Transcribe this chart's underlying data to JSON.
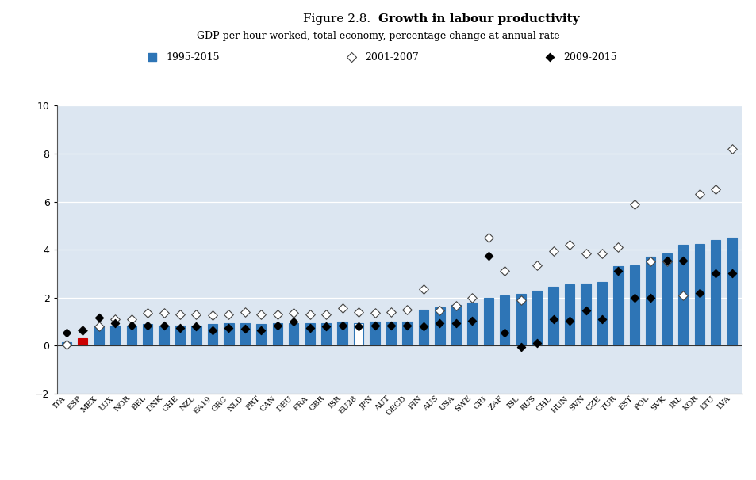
{
  "title_prefix": "Figure 2.8.  ",
  "title_bold": "Growth in labour productivity",
  "subtitle": "GDP per hour worked, total economy, percentage change at annual rate",
  "categories": [
    "ITA",
    "ESP",
    "MEX",
    "LUX",
    "NOR",
    "BEL",
    "DNK",
    "CHE",
    "NZL",
    "EA19",
    "GRC",
    "NLD",
    "PRT",
    "CAN",
    "DEU",
    "FRA",
    "GBR",
    "ISR",
    "EU28",
    "JPN",
    "AUT",
    "OECD",
    "FIN",
    "AUS",
    "USA",
    "SWE",
    "CRI",
    "ZAF",
    "ISL",
    "RUS",
    "CHL",
    "HUN",
    "SVN",
    "CZE",
    "TUR",
    "EST",
    "POL",
    "SVK",
    "IRL",
    "KOR",
    "LTU",
    "LVA"
  ],
  "bar_values": [
    0.15,
    0.3,
    0.85,
    0.85,
    0.85,
    0.9,
    0.85,
    0.85,
    0.85,
    0.9,
    0.95,
    0.95,
    0.9,
    0.95,
    0.95,
    0.95,
    0.95,
    1.0,
    0.95,
    1.0,
    1.0,
    1.0,
    1.5,
    1.6,
    1.7,
    1.8,
    2.0,
    2.1,
    2.15,
    2.3,
    2.45,
    2.55,
    2.6,
    2.65,
    3.3,
    3.35,
    3.7,
    3.85,
    4.2,
    4.25,
    4.4,
    4.5
  ],
  "bar_colors": [
    "#2e75b6",
    "#cc0000",
    "#2e75b6",
    "#2e75b6",
    "#2e75b6",
    "#2e75b6",
    "#2e75b6",
    "#2e75b6",
    "#2e75b6",
    "#2e75b6",
    "#2e75b6",
    "#2e75b6",
    "#2e75b6",
    "#2e75b6",
    "#2e75b6",
    "#2e75b6",
    "#2e75b6",
    "#2e75b6",
    "#ffffff",
    "#2e75b6",
    "#2e75b6",
    "#2e75b6",
    "#2e75b6",
    "#2e75b6",
    "#2e75b6",
    "#2e75b6",
    "#2e75b6",
    "#2e75b6",
    "#2e75b6",
    "#2e75b6",
    "#2e75b6",
    "#2e75b6",
    "#2e75b6",
    "#2e75b6",
    "#2e75b6",
    "#2e75b6",
    "#2e75b6",
    "#2e75b6",
    "#2e75b6",
    "#2e75b6",
    "#2e75b6",
    "#2e75b6"
  ],
  "bar_edge_colors": [
    "#2e75b6",
    "#cc0000",
    "#2e75b6",
    "#2e75b6",
    "#2e75b6",
    "#2e75b6",
    "#2e75b6",
    "#2e75b6",
    "#2e75b6",
    "#2e75b6",
    "#2e75b6",
    "#2e75b6",
    "#2e75b6",
    "#2e75b6",
    "#2e75b6",
    "#2e75b6",
    "#2e75b6",
    "#2e75b6",
    "#2e75b6",
    "#2e75b6",
    "#2e75b6",
    "#2e75b6",
    "#2e75b6",
    "#2e75b6",
    "#2e75b6",
    "#2e75b6",
    "#2e75b6",
    "#2e75b6",
    "#2e75b6",
    "#2e75b6",
    "#2e75b6",
    "#2e75b6",
    "#2e75b6",
    "#2e75b6",
    "#2e75b6",
    "#2e75b6",
    "#2e75b6",
    "#2e75b6",
    "#2e75b6",
    "#2e75b6",
    "#2e75b6",
    "#2e75b6"
  ],
  "diamond_open_values": [
    0.05,
    0.65,
    0.8,
    1.1,
    1.1,
    1.35,
    1.35,
    1.3,
    1.3,
    1.25,
    1.3,
    1.4,
    1.3,
    1.3,
    1.35,
    1.3,
    1.3,
    1.55,
    1.4,
    1.35,
    1.4,
    1.5,
    2.35,
    1.45,
    1.65,
    2.0,
    4.5,
    3.1,
    1.9,
    3.35,
    3.95,
    4.2,
    3.85,
    3.85,
    4.1,
    5.9,
    3.5,
    3.5,
    2.1,
    6.3,
    6.5,
    8.2
  ],
  "diamond_filled_values": [
    0.55,
    0.65,
    1.15,
    0.95,
    0.85,
    0.85,
    0.85,
    0.75,
    0.8,
    0.65,
    0.75,
    0.7,
    0.65,
    0.85,
    1.0,
    0.75,
    0.8,
    0.85,
    0.8,
    0.85,
    0.85,
    0.85,
    0.8,
    0.95,
    0.95,
    1.05,
    3.75,
    0.55,
    -0.05,
    0.1,
    1.1,
    1.05,
    1.45,
    1.1,
    3.1,
    2.0,
    2.0,
    3.55,
    3.55,
    2.2,
    3.0,
    3.0
  ],
  "ylim": [
    -2,
    10
  ],
  "yticks": [
    -2,
    0,
    2,
    4,
    6,
    8,
    10
  ],
  "bg_color": "#dce6f1",
  "bar_width": 0.6
}
